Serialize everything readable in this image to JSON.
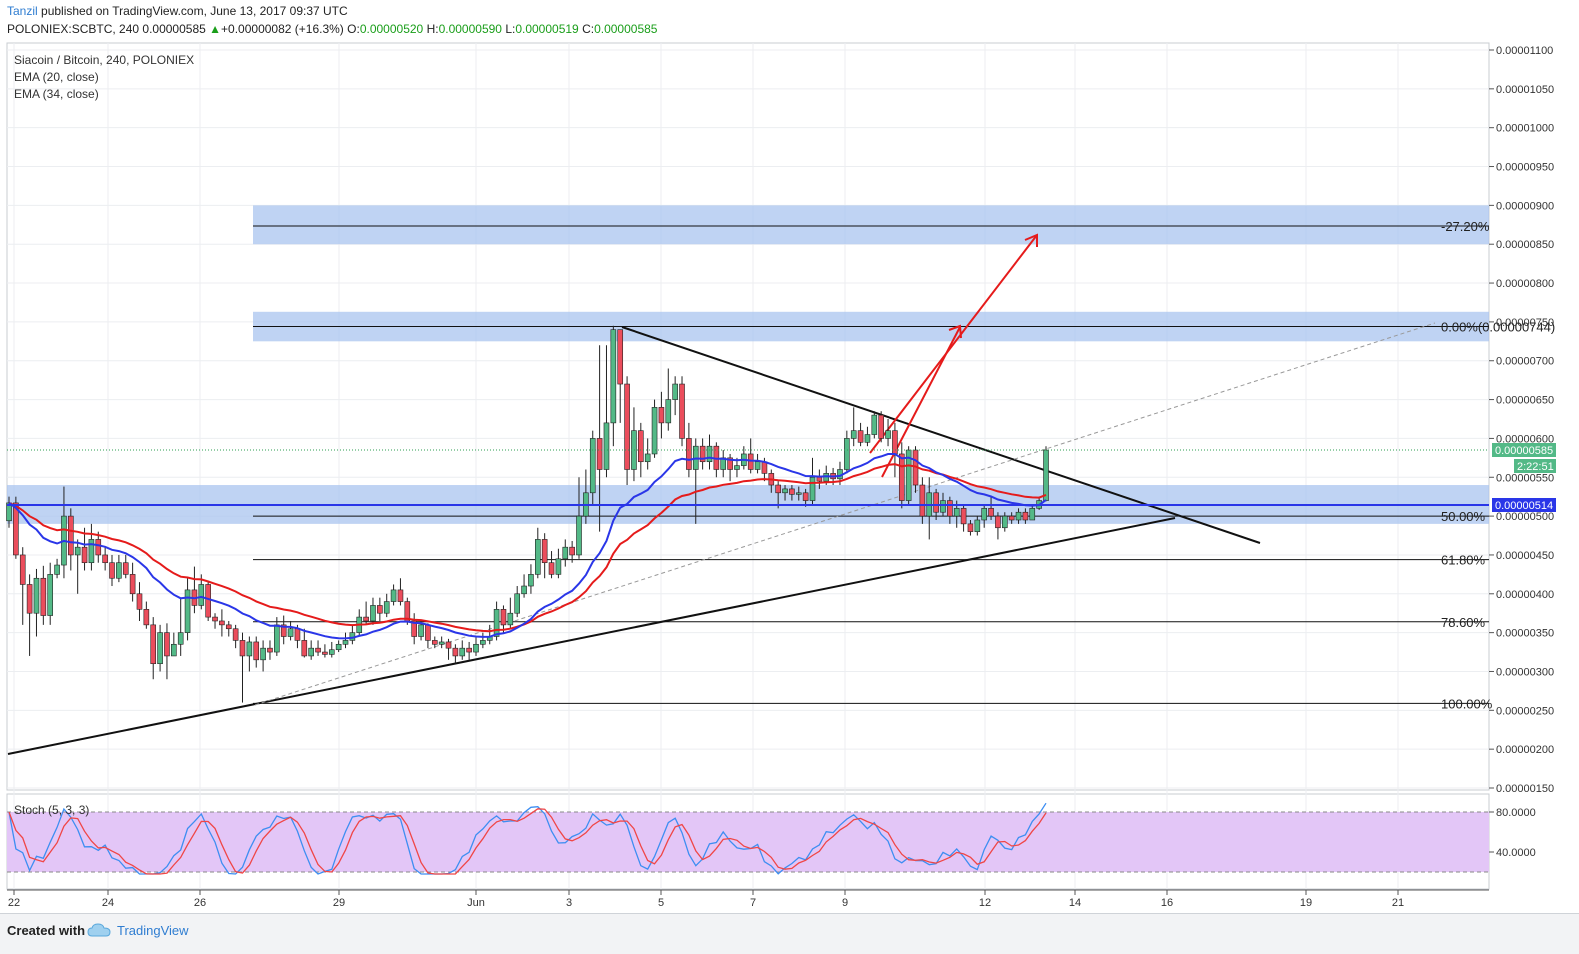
{
  "header": {
    "user": "Tanzil",
    "published": " published on TradingView.com, June 13, 2017 09:37 UTC",
    "symbol": "POLONIEX:SCBTC, 240",
    "price": "0.00000585",
    "change": "+0.00000082 (+16.3%)",
    "o_label": "O:",
    "o": "0.00000520",
    "h_label": "H:",
    "h": "0.00000590",
    "l_label": "L:",
    "l": "0.00000519",
    "c_label": "C:",
    "c": "0.00000585"
  },
  "legend": {
    "title": "Siacoin / Bitcoin, 240, POLONIEX",
    "ema20": "EMA (20, close)",
    "ema34": "EMA (34, close)"
  },
  "stoch_label": "Stoch (5, 3, 3)",
  "footer": {
    "created": "Created with",
    "brand": "TradingView"
  },
  "colors": {
    "up": "#53b987",
    "down": "#eb4d5c",
    "ema20": "#2a36e8",
    "ema34": "#e51b1b",
    "zone": "#a9c4ef",
    "stoch_bg": "#e3c6f7",
    "k": "#3d8ef2",
    "d": "#f04646"
  },
  "chart_data": {
    "type": "candlestick",
    "y_axis": {
      "range": [
        1.4e-06,
        1.1e-06
      ],
      "ticks": [
        "0.00000150",
        "0.00000200",
        "0.00000250",
        "0.00000300",
        "0.00000350",
        "0.00000400",
        "0.00000450",
        "0.00000500",
        "0.00000550",
        "0.00000600",
        "0.00000650",
        "0.00000700",
        "0.00000750",
        "0.00000800",
        "0.00000850",
        "0.00000900",
        "0.00000950",
        "0.00001000",
        "0.00001050",
        "0.00001100"
      ]
    },
    "x_axis": {
      "ticks": [
        "22",
        "24",
        "26",
        "29",
        "Jun",
        "3",
        "5",
        "7",
        "9",
        "12",
        "14",
        "16",
        "19",
        "21"
      ]
    },
    "current_price_label": "0.00000585",
    "countdown_label": "2:22:51",
    "ema_label": "0.00000514",
    "fib_levels": [
      {
        "label": "-27.20%",
        "value": 8.735e-06
      },
      {
        "label": "0.00%(0.00000744)",
        "value": 7.44e-06
      },
      {
        "label": "50.00%",
        "value": 5e-06
      },
      {
        "label": "61.80%",
        "value": 4.44e-06
      },
      {
        "label": "78.60%",
        "value": 3.64e-06
      },
      {
        "label": "100.00%",
        "value": 2.59e-06
      }
    ],
    "supply_demand_zones": [
      [
        8.5e-06,
        9e-06
      ],
      [
        7.25e-06,
        7.63e-06
      ],
      [
        4.9e-06,
        5.4e-06
      ]
    ],
    "candles": [
      [
        4.94e-06,
        5.17e-06,
        5.25e-06,
        4.85e-06
      ],
      [
        5.17e-06,
        4.5e-06,
        5.25e-06,
        4.45e-06
      ],
      [
        4.5e-06,
        4.12e-06,
        4.6e-06,
        3.6e-06
      ],
      [
        4.12e-06,
        3.75e-06,
        4.25e-06,
        3.2e-06
      ],
      [
        3.75e-06,
        4.2e-06,
        4.32e-06,
        3.45e-06
      ],
      [
        4.2e-06,
        3.72e-06,
        4.36e-06,
        3.6e-06
      ],
      [
        3.72e-06,
        4.25e-06,
        4.4e-06,
        3.6e-06
      ],
      [
        4.25e-06,
        4.37e-06,
        4.45e-06,
        4.2e-06
      ],
      [
        4.37e-06,
        5e-06,
        5.38e-06,
        4.2e-06
      ],
      [
        5e-06,
        4.5e-06,
        5.1e-06,
        4.3e-06
      ],
      [
        4.5e-06,
        4.6e-06,
        4.7e-06,
        4e-06
      ],
      [
        4.6e-06,
        4.4e-06,
        4.85e-06,
        4.3e-06
      ],
      [
        4.4e-06,
        4.7e-06,
        4.9e-06,
        4.3e-06
      ],
      [
        4.7e-06,
        4.5e-06,
        4.8e-06,
        4.4e-06
      ],
      [
        4.5e-06,
        4.4e-06,
        4.6e-06,
        4.3e-06
      ],
      [
        4.4e-06,
        4.2e-06,
        4.5e-06,
        4.1e-06
      ],
      [
        4.2e-06,
        4.4e-06,
        4.5e-06,
        4.15e-06
      ],
      [
        4.4e-06,
        4.25e-06,
        4.5e-06,
        4.2e-06
      ],
      [
        4.25e-06,
        4e-06,
        4.4e-06,
        3.9e-06
      ],
      [
        4e-06,
        3.8e-06,
        4.15e-06,
        3.65e-06
      ],
      [
        3.8e-06,
        3.6e-06,
        3.9e-06,
        3.55e-06
      ],
      [
        3.6e-06,
        3.1e-06,
        3.7e-06,
        2.9e-06
      ],
      [
        3.1e-06,
        3.5e-06,
        3.6e-06,
        3e-06
      ],
      [
        3.5e-06,
        3.2e-06,
        3.62e-06,
        2.9e-06
      ],
      [
        3.2e-06,
        3.35e-06,
        3.5e-06,
        3.2e-06
      ],
      [
        3.35e-06,
        3.5e-06,
        3.95e-06,
        3.2e-06
      ],
      [
        3.5e-06,
        4.05e-06,
        4.2e-06,
        3.4e-06
      ],
      [
        4.05e-06,
        3.85e-06,
        4.35e-06,
        3.75e-06
      ],
      [
        3.85e-06,
        4.12e-06,
        4.25e-06,
        3.8e-06
      ],
      [
        4.12e-06,
        3.7e-06,
        4.15e-06,
        3.65e-06
      ],
      [
        3.7e-06,
        3.65e-06,
        3.75e-06,
        3.55e-06
      ],
      [
        3.65e-06,
        3.6e-06,
        3.8e-06,
        3.45e-06
      ],
      [
        3.6e-06,
        3.55e-06,
        3.65e-06,
        3.45e-06
      ],
      [
        3.55e-06,
        3.4e-06,
        3.6e-06,
        3.3e-06
      ],
      [
        3.4e-06,
        3.2e-06,
        3.5e-06,
        2.6e-06
      ],
      [
        3.2e-06,
        3.38e-06,
        3.45e-06,
        3e-06
      ],
      [
        3.38e-06,
        3.15e-06,
        3.45e-06,
        3.05e-06
      ],
      [
        3.15e-06,
        3.3e-06,
        3.4e-06,
        3e-06
      ],
      [
        3.3e-06,
        3.25e-06,
        3.4e-06,
        3.15e-06
      ],
      [
        3.25e-06,
        3.6e-06,
        3.7e-06,
        3.2e-06
      ],
      [
        3.6e-06,
        3.45e-06,
        3.72e-06,
        3.35e-06
      ],
      [
        3.45e-06,
        3.55e-06,
        3.65e-06,
        3.4e-06
      ],
      [
        3.55e-06,
        3.4e-06,
        3.6e-06,
        3.3e-06
      ],
      [
        3.4e-06,
        3.2e-06,
        3.55e-06,
        3.18e-06
      ],
      [
        3.2e-06,
        3.3e-06,
        3.4e-06,
        3.15e-06
      ],
      [
        3.3e-06,
        3.25e-06,
        3.4e-06,
        3.2e-06
      ],
      [
        3.25e-06,
        3.22e-06,
        3.35e-06,
        3.18e-06
      ],
      [
        3.22e-06,
        3.28e-06,
        3.38e-06,
        3.18e-06
      ],
      [
        3.28e-06,
        3.35e-06,
        3.4e-06,
        3.25e-06
      ],
      [
        3.35e-06,
        3.4e-06,
        3.5e-06,
        3.3e-06
      ],
      [
        3.4e-06,
        3.5e-06,
        3.6e-06,
        3.35e-06
      ],
      [
        3.5e-06,
        3.7e-06,
        3.8e-06,
        3.45e-06
      ],
      [
        3.7e-06,
        3.65e-06,
        3.9e-06,
        3.6e-06
      ],
      [
        3.65e-06,
        3.85e-06,
        3.95e-06,
        3.6e-06
      ],
      [
        3.85e-06,
        3.75e-06,
        3.95e-06,
        3.65e-06
      ],
      [
        3.75e-06,
        3.9e-06,
        4e-06,
        3.7e-06
      ],
      [
        3.9e-06,
        4.05e-06,
        4.12e-06,
        3.85e-06
      ],
      [
        4.05e-06,
        3.9e-06,
        4.2e-06,
        3.85e-06
      ],
      [
        3.9e-06,
        3.65e-06,
        3.95e-06,
        3.6e-06
      ],
      [
        3.65e-06,
        3.45e-06,
        3.75e-06,
        3.35e-06
      ],
      [
        3.45e-06,
        3.6e-06,
        3.65e-06,
        3.4e-06
      ],
      [
        3.6e-06,
        3.4e-06,
        3.62e-06,
        3.3e-06
      ],
      [
        3.4e-06,
        3.35e-06,
        3.45e-06,
        3.3e-06
      ],
      [
        3.35e-06,
        3.38e-06,
        3.45e-06,
        3.3e-06
      ],
      [
        3.38e-06,
        3.3e-06,
        3.42e-06,
        3.15e-06
      ],
      [
        3.3e-06,
        3.2e-06,
        3.35e-06,
        3.1e-06
      ],
      [
        3.2e-06,
        3.3e-06,
        3.4e-06,
        3.15e-06
      ],
      [
        3.3e-06,
        3.25e-06,
        3.38e-06,
        3.15e-06
      ],
      [
        3.25e-06,
        3.35e-06,
        3.45e-06,
        3.2e-06
      ],
      [
        3.35e-06,
        3.4e-06,
        3.5e-06,
        3.3e-06
      ],
      [
        3.4e-06,
        3.45e-06,
        3.6e-06,
        3.35e-06
      ],
      [
        3.45e-06,
        3.8e-06,
        3.9e-06,
        3.4e-06
      ],
      [
        3.8e-06,
        3.6e-06,
        3.85e-06,
        3.5e-06
      ],
      [
        3.6e-06,
        3.75e-06,
        3.95e-06,
        3.55e-06
      ],
      [
        3.75e-06,
        4e-06,
        4.1e-06,
        3.7e-06
      ],
      [
        4e-06,
        4.1e-06,
        4.25e-06,
        3.95e-06
      ],
      [
        4.1e-06,
        4.25e-06,
        4.38e-06,
        4e-06
      ],
      [
        4.25e-06,
        4.7e-06,
        4.85e-06,
        4.2e-06
      ],
      [
        4.7e-06,
        4.4e-06,
        4.78e-06,
        4.2e-06
      ],
      [
        4.4e-06,
        4.25e-06,
        4.55e-06,
        4.2e-06
      ],
      [
        4.25e-06,
        4.45e-06,
        4.58e-06,
        4.2e-06
      ],
      [
        4.45e-06,
        4.6e-06,
        4.7e-06,
        4.35e-06
      ],
      [
        4.6e-06,
        4.5e-06,
        4.68e-06,
        4.4e-06
      ],
      [
        4.5e-06,
        5e-06,
        5.5e-06,
        4.45e-06
      ],
      [
        5e-06,
        5.3e-06,
        5.6e-06,
        4.9e-06
      ],
      [
        5.3e-06,
        6e-06,
        6.1e-06,
        5.15e-06
      ],
      [
        6e-06,
        5.6e-06,
        7.2e-06,
        4.8e-06
      ],
      [
        5.6e-06,
        6.2e-06,
        7.2e-06,
        5.5e-06
      ],
      [
        6.2e-06,
        7.4e-06,
        7.45e-06,
        5.9e-06
      ],
      [
        7.4e-06,
        6.7e-06,
        7.4e-06,
        6.2e-06
      ],
      [
        6.7e-06,
        5.6e-06,
        6.8e-06,
        5.4e-06
      ],
      [
        5.6e-06,
        6.1e-06,
        6.4e-06,
        5.45e-06
      ],
      [
        6.1e-06,
        5.7e-06,
        6.2e-06,
        5.5e-06
      ],
      [
        5.7e-06,
        5.8e-06,
        6e-06,
        5.6e-06
      ],
      [
        5.8e-06,
        6.4e-06,
        6.5e-06,
        5.75e-06
      ],
      [
        6.4e-06,
        6.2e-06,
        6.6e-06,
        6e-06
      ],
      [
        6.2e-06,
        6.5e-06,
        6.9e-06,
        6.1e-06
      ],
      [
        6.5e-06,
        6.7e-06,
        6.8e-06,
        6.3e-06
      ],
      [
        6.7e-06,
        6e-06,
        6.8e-06,
        5.9e-06
      ],
      [
        6e-06,
        5.6e-06,
        6.2e-06,
        5.5e-06
      ],
      [
        5.6e-06,
        5.9e-06,
        6e-06,
        4.9e-06
      ],
      [
        5.9e-06,
        5.7e-06,
        6e-06,
        5.6e-06
      ],
      [
        5.7e-06,
        5.9e-06,
        6.05e-06,
        5.6e-06
      ],
      [
        5.9e-06,
        5.6e-06,
        5.95e-06,
        5.5e-06
      ],
      [
        5.6e-06,
        5.75e-06,
        5.85e-06,
        5.5e-06
      ],
      [
        5.75e-06,
        5.6e-06,
        5.8e-06,
        5.45e-06
      ],
      [
        5.6e-06,
        5.65e-06,
        5.75e-06,
        5.5e-06
      ],
      [
        5.65e-06,
        5.8e-06,
        5.9e-06,
        5.6e-06
      ],
      [
        5.8e-06,
        5.6e-06,
        6e-06,
        5.55e-06
      ],
      [
        5.6e-06,
        5.7e-06,
        5.8e-06,
        5.55e-06
      ],
      [
        5.7e-06,
        5.55e-06,
        5.75e-06,
        5.45e-06
      ],
      [
        5.55e-06,
        5.4e-06,
        5.6e-06,
        5.3e-06
      ],
      [
        5.4e-06,
        5.3e-06,
        5.45e-06,
        5.1e-06
      ],
      [
        5.3e-06,
        5.35e-06,
        5.4e-06,
        5.2e-06
      ],
      [
        5.35e-06,
        5.28e-06,
        5.4e-06,
        5.2e-06
      ],
      [
        5.28e-06,
        5.3e-06,
        5.38e-06,
        5.2e-06
      ],
      [
        5.3e-06,
        5.2e-06,
        5.35e-06,
        5.12e-06
      ],
      [
        5.2e-06,
        5.5e-06,
        5.75e-06,
        5.15e-06
      ],
      [
        5.5e-06,
        5.45e-06,
        5.6e-06,
        5.35e-06
      ],
      [
        5.45e-06,
        5.55e-06,
        5.65e-06,
        5.4e-06
      ],
      [
        5.55e-06,
        5.48e-06,
        5.62e-06,
        5.4e-06
      ],
      [
        5.48e-06,
        5.6e-06,
        5.7e-06,
        5.4e-06
      ],
      [
        5.6e-06,
        6e-06,
        6.1e-06,
        5.55e-06
      ],
      [
        6e-06,
        6.1e-06,
        6.4e-06,
        5.9e-06
      ],
      [
        6.1e-06,
        5.95e-06,
        6.2e-06,
        5.9e-06
      ],
      [
        5.95e-06,
        6.05e-06,
        6.15e-06,
        5.9e-06
      ],
      [
        6.05e-06,
        6.3e-06,
        6.35e-06,
        6e-06
      ],
      [
        6.3e-06,
        6e-06,
        6.35e-06,
        5.95e-06
      ],
      [
        6e-06,
        6.1e-06,
        6.25e-06,
        5.9e-06
      ],
      [
        6.1e-06,
        5.8e-06,
        6.2e-06,
        5.5e-06
      ],
      [
        5.8e-06,
        5.2e-06,
        5.95e-06,
        5.1e-06
      ],
      [
        5.2e-06,
        5.85e-06,
        5.9e-06,
        5.15e-06
      ],
      [
        5.85e-06,
        5.4e-06,
        5.9e-06,
        5.3e-06
      ],
      [
        5.4e-06,
        5e-06,
        5.5e-06,
        4.9e-06
      ],
      [
        5e-06,
        5.3e-06,
        5.5e-06,
        4.7e-06
      ],
      [
        5.3e-06,
        5.05e-06,
        5.35e-06,
        4.95e-06
      ],
      [
        5.05e-06,
        5.2e-06,
        5.3e-06,
        5e-06
      ],
      [
        5.2e-06,
        5e-06,
        5.25e-06,
        4.9e-06
      ],
      [
        5e-06,
        5.1e-06,
        5.2e-06,
        4.85e-06
      ],
      [
        5.1e-06,
        4.9e-06,
        5.15e-06,
        4.8e-06
      ],
      [
        4.9e-06,
        4.8e-06,
        4.95e-06,
        4.75e-06
      ],
      [
        4.8e-06,
        4.95e-06,
        5e-06,
        4.75e-06
      ],
      [
        4.95e-06,
        5.1e-06,
        5.15e-06,
        4.85e-06
      ],
      [
        5.1e-06,
        5e-06,
        5.25e-06,
        4.95e-06
      ],
      [
        5e-06,
        4.85e-06,
        5.05e-06,
        4.7e-06
      ],
      [
        4.85e-06,
        5e-06,
        5.05e-06,
        4.8e-06
      ],
      [
        5e-06,
        4.95e-06,
        5.05e-06,
        4.9e-06
      ],
      [
        4.95e-06,
        5.05e-06,
        5.1e-06,
        4.9e-06
      ],
      [
        5.05e-06,
        4.95e-06,
        5.1e-06,
        4.9e-06
      ],
      [
        4.95e-06,
        5.1e-06,
        5.15e-06,
        4.95e-06
      ],
      [
        5.1e-06,
        5.2e-06,
        5.25e-06,
        5.08e-06
      ],
      [
        5.2e-06,
        5.85e-06,
        5.9e-06,
        5.19e-06
      ]
    ],
    "stoch_ticks": [
      "80.0000",
      "40.0000"
    ]
  }
}
